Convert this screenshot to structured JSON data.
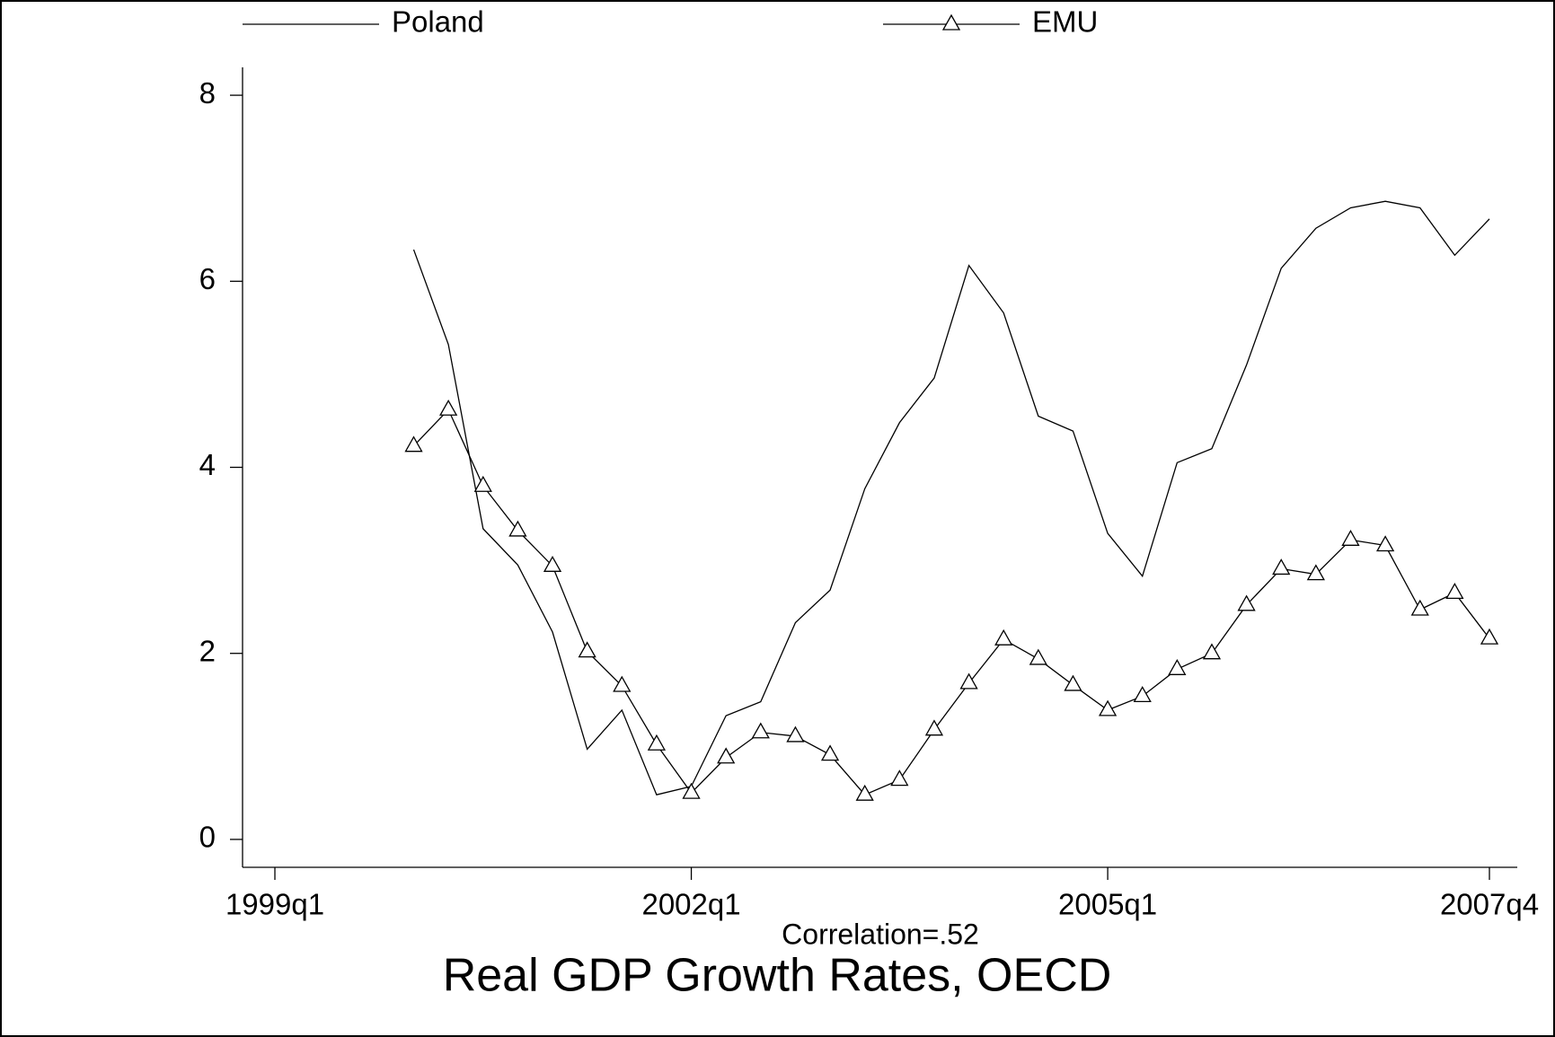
{
  "chart_data": {
    "type": "line",
    "title": "Real GDP Growth Rates, OECD",
    "annotation": "Correlation=.52",
    "x": [
      "2000q1",
      "2000q2",
      "2000q3",
      "2000q4",
      "2001q1",
      "2001q2",
      "2001q3",
      "2001q4",
      "2002q1",
      "2002q2",
      "2002q3",
      "2002q4",
      "2003q1",
      "2003q2",
      "2003q3",
      "2003q4",
      "2004q1",
      "2004q2",
      "2004q3",
      "2004q4",
      "2005q1",
      "2005q2",
      "2005q3",
      "2005q4",
      "2006q1",
      "2006q2",
      "2006q3",
      "2006q4",
      "2007q1",
      "2007q2",
      "2007q3",
      "2007q4"
    ],
    "series": [
      {
        "name": "Poland",
        "color": "#000000",
        "marker": "none",
        "values": [
          6.34,
          5.32,
          3.34,
          2.95,
          2.23,
          0.97,
          1.39,
          0.48,
          0.57,
          1.33,
          1.48,
          2.33,
          2.68,
          3.77,
          4.48,
          4.96,
          6.17,
          5.66,
          4.55,
          4.39,
          3.29,
          2.83,
          4.05,
          4.2,
          5.1,
          6.14,
          6.57,
          6.79,
          6.86,
          6.79,
          6.28,
          6.67
        ]
      },
      {
        "name": "EMU",
        "color": "#000000",
        "marker": "triangle",
        "values": [
          4.23,
          4.62,
          3.8,
          3.32,
          2.94,
          2.02,
          1.65,
          1.02,
          0.5,
          0.88,
          1.15,
          1.11,
          0.91,
          0.48,
          0.64,
          1.18,
          1.68,
          2.15,
          1.94,
          1.66,
          1.39,
          1.54,
          1.83,
          2.0,
          2.52,
          2.91,
          2.85,
          3.22,
          3.16,
          2.47,
          2.65,
          2.16
        ]
      }
    ],
    "xlim": [
      "1999q1",
      "2007q4"
    ],
    "xticks": [
      "1999q1",
      "2002q1",
      "2005q1",
      "2007q4"
    ],
    "ylim": [
      -0.3,
      8.3
    ],
    "yticks": [
      0,
      2,
      4,
      6,
      8
    ],
    "legend": "top",
    "grid": false
  }
}
